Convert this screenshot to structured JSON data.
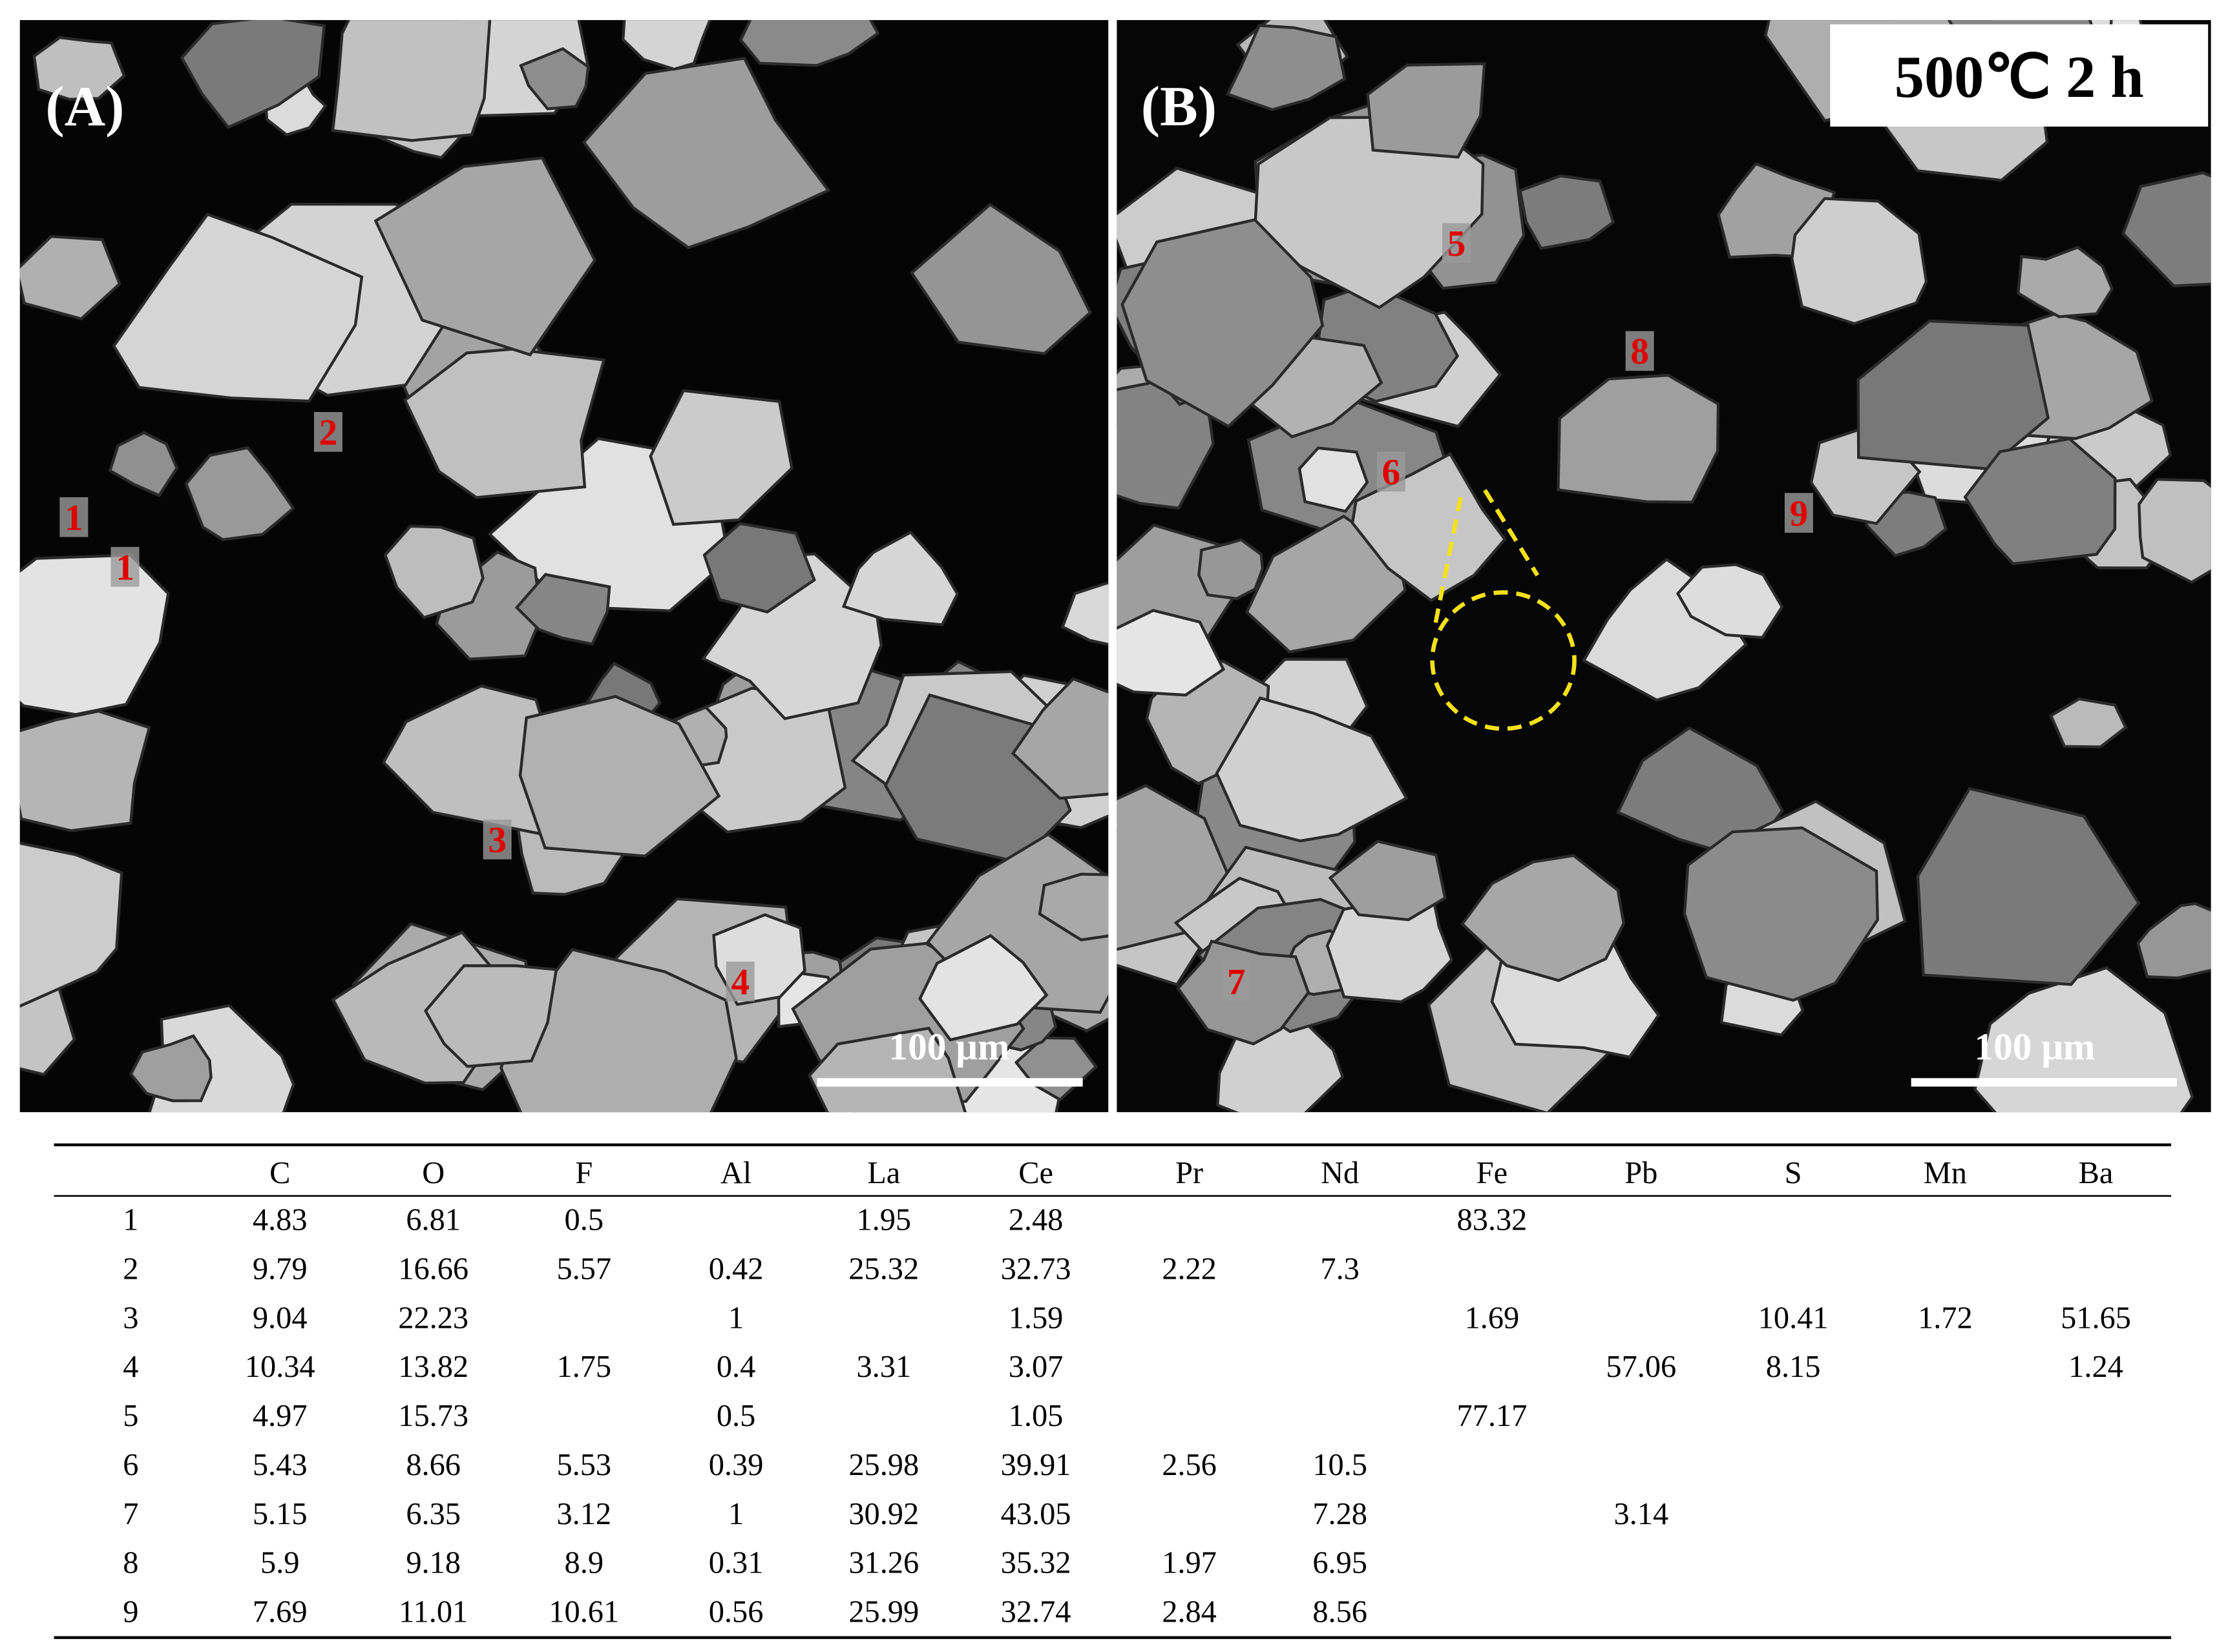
{
  "panels": [
    {
      "label": "(A)",
      "scale_bar": "100 μm",
      "markers": [
        "1",
        "1",
        "2",
        "3",
        "4"
      ]
    },
    {
      "label": "(B)",
      "condition": "500℃ 2 h",
      "scale_bar": "100 μm",
      "markers": [
        "5",
        "8",
        "6",
        "9",
        "7"
      ]
    }
  ],
  "table": {
    "header": [
      null,
      "C",
      "O",
      "F",
      "Al",
      "La",
      "Ce",
      "Pr",
      "Nd",
      "Fe",
      "Pb",
      "S",
      "Mn",
      "Ba"
    ],
    "rows": [
      [
        "1",
        "4.83",
        "6.81",
        "0.5",
        null,
        "1.95",
        "2.48",
        null,
        null,
        "83.32",
        null,
        null,
        null,
        null
      ],
      [
        "2",
        "9.79",
        "16.66",
        "5.57",
        "0.42",
        "25.32",
        "32.73",
        "2.22",
        "7.3",
        null,
        null,
        null,
        null,
        null
      ],
      [
        "3",
        "9.04",
        "22.23",
        null,
        "1",
        null,
        "1.59",
        null,
        null,
        "1.69",
        null,
        "10.41",
        "1.72",
        "51.65"
      ],
      [
        "4",
        "10.34",
        "13.82",
        "1.75",
        "0.4",
        "3.31",
        "3.07",
        null,
        null,
        null,
        "57.06",
        "8.15",
        null,
        "1.24"
      ],
      [
        "5",
        "4.97",
        "15.73",
        null,
        "0.5",
        null,
        "1.05",
        null,
        null,
        "77.17",
        null,
        null,
        null,
        null
      ],
      [
        "6",
        "5.43",
        "8.66",
        "5.53",
        "0.39",
        "25.98",
        "39.91",
        "2.56",
        "10.5",
        null,
        null,
        null,
        null,
        null
      ],
      [
        "7",
        "5.15",
        "6.35",
        "3.12",
        "1",
        "30.92",
        "43.05",
        null,
        "7.28",
        null,
        "3.14",
        null,
        null,
        null
      ],
      [
        "8",
        "5.9",
        "9.18",
        "8.9",
        "0.31",
        "31.26",
        "35.32",
        "1.97",
        "6.95",
        null,
        null,
        null,
        null,
        null
      ],
      [
        "9",
        "7.69",
        "11.01",
        "10.61",
        "0.56",
        "25.99",
        "32.74",
        "2.84",
        "8.56",
        null,
        null,
        null,
        null,
        null
      ]
    ]
  }
}
